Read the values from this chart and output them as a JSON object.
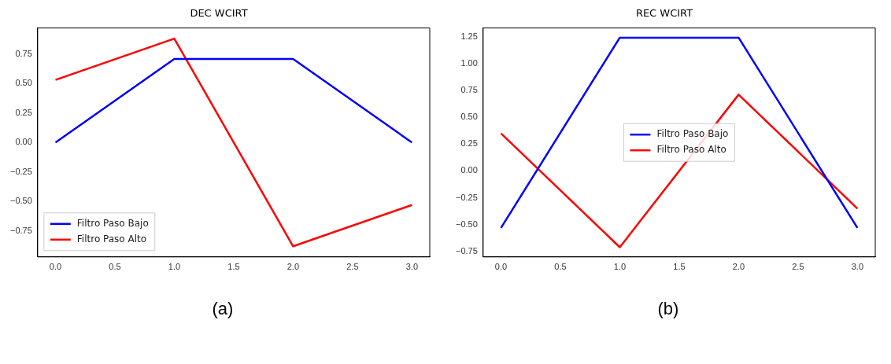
{
  "chart_data": [
    {
      "type": "line",
      "title": "DEC WCIRT",
      "x": [
        0,
        1,
        2,
        3
      ],
      "series": [
        {
          "name": "Filtro Paso Bajo",
          "color": "#0000ff",
          "values": [
            0,
            0.707,
            0.707,
            0
          ]
        },
        {
          "name": "Filtro Paso Alto",
          "color": "#ff0000",
          "values": [
            0.53,
            0.88,
            -0.88,
            -0.53
          ]
        }
      ],
      "xlim": [
        -0.15,
        3.15
      ],
      "xticks": [
        {
          "value": 0,
          "label": "0.0"
        },
        {
          "value": 0.5,
          "label": "0.5"
        },
        {
          "value": 1,
          "label": "1.0"
        },
        {
          "value": 1.5,
          "label": "1.5"
        },
        {
          "value": 2,
          "label": "2.0"
        },
        {
          "value": 2.5,
          "label": "2.5"
        },
        {
          "value": 3,
          "label": "3.0"
        }
      ],
      "ylim": [
        -0.97,
        0.97
      ],
      "yticks": [
        {
          "value": -0.75,
          "label": "−0.75"
        },
        {
          "value": -0.5,
          "label": "−0.50"
        },
        {
          "value": -0.25,
          "label": "−0.25"
        },
        {
          "value": 0,
          "label": "0.00"
        },
        {
          "value": 0.25,
          "label": "0.25"
        },
        {
          "value": 0.5,
          "label": "0.50"
        },
        {
          "value": 0.75,
          "label": "0.75"
        }
      ],
      "legend": "bottom left",
      "grid": false,
      "annotations": [
        "(a)"
      ]
    },
    {
      "type": "line",
      "title": "REC WCIRT",
      "x": [
        0,
        1,
        2,
        3
      ],
      "series": [
        {
          "name": "Filtro Paso Bajo",
          "color": "#0000ff",
          "values": [
            -0.53,
            1.24,
            1.24,
            -0.53
          ]
        },
        {
          "name": "Filtro Paso Alto",
          "color": "#ff0000",
          "values": [
            0.35,
            -0.71,
            0.71,
            -0.35
          ]
        }
      ],
      "xlim": [
        -0.15,
        3.15
      ],
      "xticks": [
        {
          "value": 0,
          "label": "0.0"
        },
        {
          "value": 0.5,
          "label": "0.5"
        },
        {
          "value": 1,
          "label": "1.0"
        },
        {
          "value": 1.5,
          "label": "1.5"
        },
        {
          "value": 2,
          "label": "2.0"
        },
        {
          "value": 2.5,
          "label": "2.5"
        },
        {
          "value": 3,
          "label": "3.0"
        }
      ],
      "ylim": [
        -0.8,
        1.33
      ],
      "yticks": [
        {
          "value": -0.75,
          "label": "−0.75"
        },
        {
          "value": -0.5,
          "label": "−0.50"
        },
        {
          "value": -0.25,
          "label": "−0.25"
        },
        {
          "value": 0,
          "label": "0.00"
        },
        {
          "value": 0.25,
          "label": "0.25"
        },
        {
          "value": 0.5,
          "label": "0.50"
        },
        {
          "value": 0.75,
          "label": "0.75"
        },
        {
          "value": 1,
          "label": "1.00"
        },
        {
          "value": 1.25,
          "label": "1.25"
        }
      ],
      "legend": "center",
      "grid": false,
      "annotations": [
        "(b)"
      ]
    }
  ]
}
